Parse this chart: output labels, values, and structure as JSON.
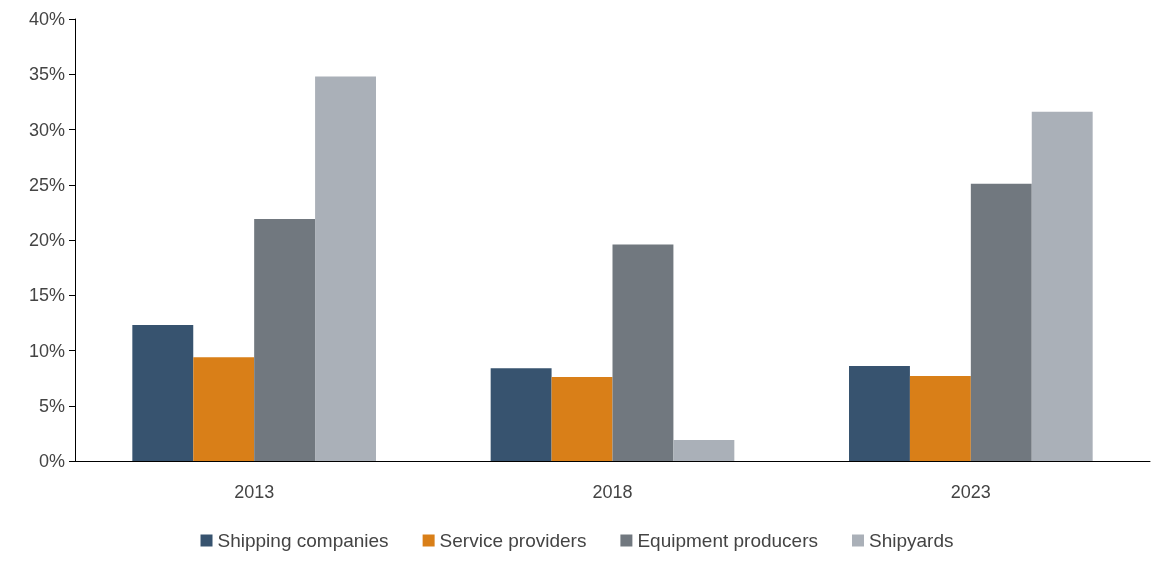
{
  "chart_data": {
    "type": "bar",
    "categories": [
      "2013",
      "2018",
      "2023"
    ],
    "series": [
      {
        "name": "Shipping companies",
        "color": "#37536f",
        "values": [
          12.3,
          8.4,
          8.6
        ]
      },
      {
        "name": "Service providers",
        "color": "#d97f18",
        "values": [
          9.4,
          7.6,
          7.7
        ]
      },
      {
        "name": "Equipment producers",
        "color": "#71787f",
        "values": [
          21.9,
          19.6,
          25.1
        ]
      },
      {
        "name": "Shipyards",
        "color": "#aab0b8",
        "values": [
          34.8,
          1.9,
          31.6
        ]
      }
    ],
    "ylim": [
      0,
      40
    ],
    "yticks": [
      {
        "value": 0,
        "label": "0%"
      },
      {
        "value": 5,
        "label": "5%"
      },
      {
        "value": 10,
        "label": "10%"
      },
      {
        "value": 15,
        "label": "15%"
      },
      {
        "value": 20,
        "label": "20%"
      },
      {
        "value": 25,
        "label": "25%"
      },
      {
        "value": 30,
        "label": "30%"
      },
      {
        "value": 35,
        "label": "35%"
      },
      {
        "value": 40,
        "label": "40%"
      }
    ],
    "grid": false,
    "legend": "bottom"
  }
}
